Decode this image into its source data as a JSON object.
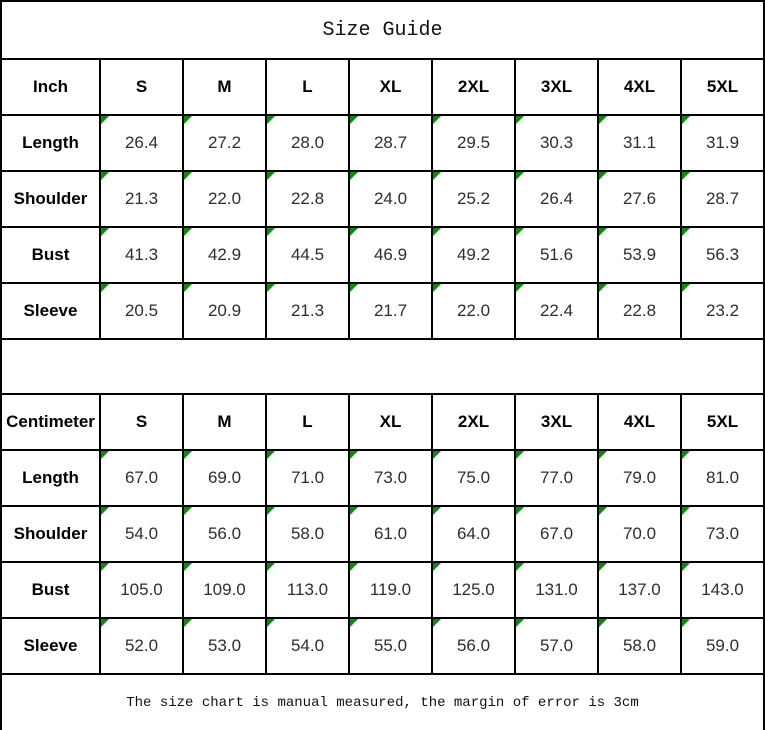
{
  "title": "Size Guide",
  "footer": "The size chart is manual measured, the margin of error is 3cm",
  "colors": {
    "border": "#000000",
    "cell_marker_green": "#0B8A0B",
    "value_text": "#2e2e2e",
    "label_text": "#000000",
    "background": "#ffffff"
  },
  "tables": [
    {
      "unit_label": "Inch",
      "sizes": [
        "S",
        "M",
        "L",
        "XL",
        "2XL",
        "3XL",
        "4XL",
        "5XL"
      ],
      "rows": [
        {
          "label": "Length",
          "values": [
            "26.4",
            "27.2",
            "28.0",
            "28.7",
            "29.5",
            "30.3",
            "31.1",
            "31.9"
          ]
        },
        {
          "label": "Shoulder",
          "values": [
            "21.3",
            "22.0",
            "22.8",
            "24.0",
            "25.2",
            "26.4",
            "27.6",
            "28.7"
          ]
        },
        {
          "label": "Bust",
          "values": [
            "41.3",
            "42.9",
            "44.5",
            "46.9",
            "49.2",
            "51.6",
            "53.9",
            "56.3"
          ]
        },
        {
          "label": "Sleeve",
          "values": [
            "20.5",
            "20.9",
            "21.3",
            "21.7",
            "22.0",
            "22.4",
            "22.8",
            "23.2"
          ]
        }
      ]
    },
    {
      "unit_label": "Centimeter",
      "sizes": [
        "S",
        "M",
        "L",
        "XL",
        "2XL",
        "3XL",
        "4XL",
        "5XL"
      ],
      "rows": [
        {
          "label": "Length",
          "values": [
            "67.0",
            "69.0",
            "71.0",
            "73.0",
            "75.0",
            "77.0",
            "79.0",
            "81.0"
          ]
        },
        {
          "label": "Shoulder",
          "values": [
            "54.0",
            "56.0",
            "58.0",
            "61.0",
            "64.0",
            "67.0",
            "70.0",
            "73.0"
          ]
        },
        {
          "label": "Bust",
          "values": [
            "105.0",
            "109.0",
            "113.0",
            "119.0",
            "125.0",
            "131.0",
            "137.0",
            "143.0"
          ]
        },
        {
          "label": "Sleeve",
          "values": [
            "52.0",
            "53.0",
            "54.0",
            "55.0",
            "56.0",
            "57.0",
            "58.0",
            "59.0"
          ]
        }
      ]
    }
  ]
}
